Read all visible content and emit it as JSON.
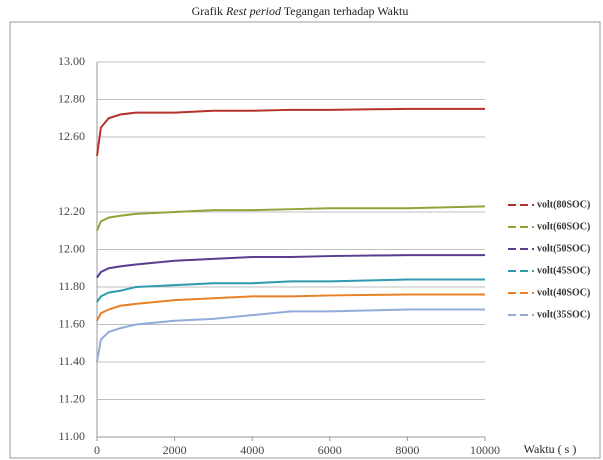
{
  "chart_data": {
    "type": "line",
    "title": [
      "Grafik ",
      "Rest period",
      " Tegangan terhadap  Waktu"
    ],
    "x_label": "Waktu ( s )",
    "x": [
      0,
      100,
      300,
      600,
      1000,
      2000,
      3000,
      4000,
      5000,
      6000,
      8000,
      10000
    ],
    "series": [
      {
        "name": "volt(80SOC)",
        "color": "#b5322a",
        "values": [
          12.5,
          12.65,
          12.7,
          12.72,
          12.73,
          12.73,
          12.74,
          12.74,
          12.745,
          12.745,
          12.75,
          12.75
        ]
      },
      {
        "name": "volt(60SOC)",
        "color": "#8ea53a",
        "values": [
          12.1,
          12.15,
          12.17,
          12.18,
          12.19,
          12.2,
          12.21,
          12.21,
          12.215,
          12.22,
          12.22,
          12.23
        ]
      },
      {
        "name": "volt(50SOC)",
        "color": "#5a3c8e",
        "values": [
          11.85,
          11.88,
          11.9,
          11.91,
          11.92,
          11.94,
          11.95,
          11.96,
          11.96,
          11.965,
          11.97,
          11.97
        ]
      },
      {
        "name": "volt(45SOC)",
        "color": "#2f9ab0",
        "values": [
          11.72,
          11.75,
          11.77,
          11.78,
          11.8,
          11.81,
          11.82,
          11.82,
          11.83,
          11.83,
          11.84,
          11.84
        ]
      },
      {
        "name": "volt(40SOC)",
        "color": "#e98028",
        "values": [
          11.62,
          11.66,
          11.68,
          11.7,
          11.71,
          11.73,
          11.74,
          11.75,
          11.75,
          11.755,
          11.76,
          11.76
        ]
      },
      {
        "name": "volt(35SOC)",
        "color": "#93abd8",
        "values": [
          11.4,
          11.52,
          11.56,
          11.58,
          11.6,
          11.62,
          11.63,
          11.65,
          11.67,
          11.67,
          11.68,
          11.68
        ]
      }
    ],
    "xlim": [
      0,
      10000
    ],
    "xticks": [
      0,
      2000,
      4000,
      6000,
      8000,
      10000
    ],
    "ylim": [
      11,
      13
    ],
    "yticks": [
      {
        "value": 11,
        "label": "11.00"
      },
      {
        "value": 11.2,
        "label": "11.20"
      },
      {
        "value": 11.4,
        "label": "11.40"
      },
      {
        "value": 11.6,
        "label": "11.60"
      },
      {
        "value": 11.8,
        "label": "11.80"
      },
      {
        "value": 12,
        "label": "12.00"
      },
      {
        "value": 12.2,
        "label": "12.20"
      },
      {
        "value": 12.6,
        "label": "12.60"
      },
      {
        "value": 12.8,
        "label": "12.80"
      },
      {
        "value": 13,
        "label": "13.00"
      }
    ],
    "grid": true,
    "legend": "right"
  }
}
